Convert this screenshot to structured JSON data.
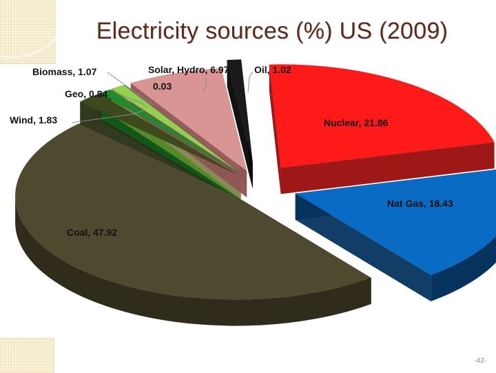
{
  "slide": {
    "title": "Electricity sources (%) US (2009)",
    "page_number": "-42-"
  },
  "chart_data": {
    "type": "pie",
    "style": "3d-exploded",
    "title": "Electricity sources (%) US (2009)",
    "slices": [
      {
        "label": "Nuclear",
        "value": 21.86,
        "color": "#ff1a1a",
        "side_color": "#9a0c0c"
      },
      {
        "label": "Nat Gas",
        "value": 18.43,
        "color": "#0a6bc4",
        "side_color": "#05335e"
      },
      {
        "label": "Coal",
        "value": 47.92,
        "color": "#4e4a30",
        "side_color": "#2f2c1b"
      },
      {
        "label": "Wind",
        "value": 1.83,
        "color": "#3d4a1d",
        "side_color": "#262f12"
      },
      {
        "label": "Geo",
        "value": 0.84,
        "color": "#1f8a2e",
        "side_color": "#0f5a1a"
      },
      {
        "label": "Biomass",
        "value": 1.07,
        "color": "#92d050",
        "side_color": "#5b8a2a"
      },
      {
        "label": "Solar",
        "value": 0.03,
        "color": "#bfbf80",
        "side_color": "#8a8a5a"
      },
      {
        "label": "Hydro",
        "value": 6.97,
        "color": "#d99594",
        "side_color": "#8f5453"
      },
      {
        "label": "Oil",
        "value": 1.02,
        "color": "#1a1a1a",
        "side_color": "#050505"
      }
    ],
    "labels": [
      {
        "text": "Nuclear, 21.86"
      },
      {
        "text": "Nat Gas, 18.43"
      },
      {
        "text": "Coal, 47.92"
      },
      {
        "text": "Wind, 1.83"
      },
      {
        "text": "Geo, 0.84"
      },
      {
        "text": "Biomass, 1.07"
      },
      {
        "text": "Solar, Hydro, 6.97"
      },
      {
        "text": "0.03"
      },
      {
        "text": "Oil, 1.02"
      }
    ]
  }
}
